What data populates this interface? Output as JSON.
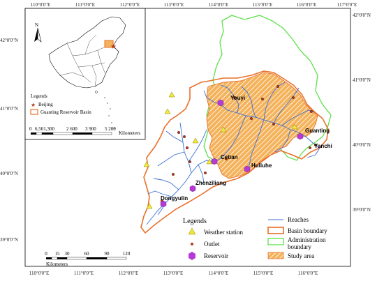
{
  "frame": {
    "top_ticks": [
      "110°0'0\"E",
      "111°0'0\"E",
      "112°0'0\"E",
      "113°0'0\"E",
      "114°0'0\"E",
      "115°0'0\"E",
      "116°0'0\"E",
      "117°0'0\"E"
    ],
    "bottom_ticks": [
      "110°0'0\"E",
      "111°0'0\"E",
      "112°0'0\"E",
      "113°0'0\"E",
      "114°0'0\"E",
      "115°0'0\"E",
      "116°0'0\"E"
    ],
    "left_ticks": [
      "42°0'0\"N",
      "41°0'0\"N",
      "40°0'0\"N",
      "39°0'0\"N"
    ],
    "right_ticks": [
      "42°0'0\"N",
      "41°0'0\"N",
      "40°0'0\"N",
      "39°0'0\"N"
    ]
  },
  "inset": {
    "north_label": "N",
    "legend_title": "Legends",
    "beijing_label": "Beijing",
    "basin_label": "Guanting Reservoir Basin",
    "scale_ticks": [
      "0",
      "6,501,300",
      "2 600",
      "3 900",
      "5 200"
    ],
    "scale_unit": "Kilometers"
  },
  "places": [
    {
      "name": "Youyi"
    },
    {
      "name": "Guanting"
    },
    {
      "name": "Yanchi"
    },
    {
      "name": "Cetian"
    },
    {
      "name": "Huliuhe"
    },
    {
      "name": "Zhenziliang"
    },
    {
      "name": "Dongyulin"
    }
  ],
  "legend": {
    "title": "Legends",
    "weather_station": "Weather station",
    "outlet": "Outlet",
    "reservoir": "Reservoir",
    "reaches": "Reaches",
    "basin_boundary": "Basin boundary",
    "admin_boundary_line1": "Administration",
    "admin_boundary_line2": "boundary",
    "study_area": "Study area"
  },
  "scalebar": {
    "ticks": [
      "0",
      "15",
      "30",
      "60",
      "90",
      "120"
    ],
    "unit": "Kilometers"
  },
  "colors": {
    "basin": "#e8702a",
    "admin": "#5ee04a",
    "study_fill": "#f4b25a",
    "reach": "#3b6fd6",
    "reservoir": "#b43bd6",
    "weather": "#f2ea3a",
    "outlet": "#b4361c"
  }
}
